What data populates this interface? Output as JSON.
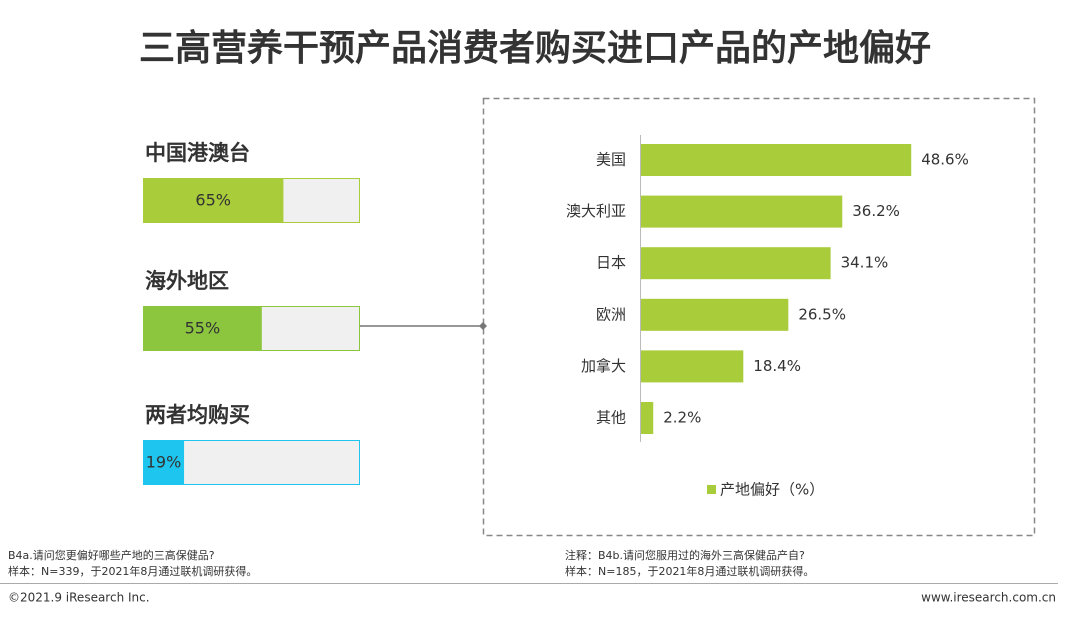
{
  "title": "三高营养干预产品消费者购买进口产品的产地偏好",
  "chart_data": [
    {
      "type": "progress",
      "categories": [
        "中国港澳台",
        "海外地区",
        "两者均购买"
      ],
      "values": [
        65,
        55,
        19
      ],
      "value_labels": [
        "65%",
        "55%",
        "19%"
      ],
      "colors": [
        "#a9cc3a",
        "#8cc63f",
        "#1ec5ee"
      ],
      "xlim": [
        0,
        100
      ]
    },
    {
      "type": "hbar",
      "categories": [
        "美国",
        "澳大利亚",
        "日本",
        "欧洲",
        "加拿大",
        "其他"
      ],
      "series": [
        {
          "name": "产地偏好（%）",
          "color": "#a9cc3a",
          "values": [
            48.6,
            36.2,
            34.1,
            26.5,
            18.4,
            2.2
          ],
          "value_labels": [
            "48.6%",
            "36.2%",
            "34.1%",
            "26.5%",
            "18.4%",
            "2.2%"
          ]
        }
      ],
      "xlim": [
        0,
        50
      ]
    }
  ],
  "notes": {
    "left": [
      "B4a.请问您更偏好哪些产地的三高保健品?",
      "样本：N=339，于2021年8月通过联机调研获得。"
    ],
    "right": [
      "注释：B4b.请问您服用过的海外三高保健品产自?",
      "样本：N=185，于2021年8月通过联机调研获得。"
    ]
  },
  "footer": {
    "copyright": "©2021.9 iResearch Inc.",
    "website": "www.iresearch.com.cn"
  }
}
